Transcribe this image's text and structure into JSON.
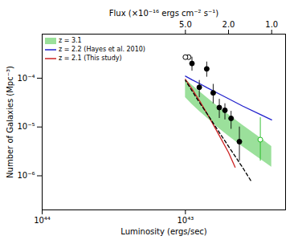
{
  "chart_data": {
    "type": "line",
    "log": true,
    "xlabel": "Luminosity (ergs/sec)",
    "ylabel": "Number of Galaxies (Mpc⁻³)",
    "x2label": "Flux (×10⁻¹⁶ ergs cm⁻² s⁻¹)",
    "xlim": [
      1e+44,
      2e+42
    ],
    "ylim": [
      2e-07,
      0.0008
    ],
    "xticks": [
      {
        "value": 1e+44,
        "label": "10⁴⁴"
      },
      {
        "value": 1e+43,
        "label": "10⁴³"
      }
    ],
    "x2ticks": [
      {
        "value": 1e+43,
        "label": "5.0"
      },
      {
        "value": 5e+42,
        "label": "2.0"
      },
      {
        "value": 2.5e+42,
        "label": "1.0"
      }
    ],
    "yticks": [
      {
        "value": 1e-06,
        "label": "10⁻⁶"
      },
      {
        "value": 1e-05,
        "label": "10⁻⁵"
      },
      {
        "value": 0.0001,
        "label": "10⁻⁴"
      }
    ],
    "grid": false,
    "legend": "upper left",
    "series": [
      {
        "name": "z = 3.1",
        "type": "band",
        "color": "#22bb22",
        "x": [
          2.5e+42,
          3e+42,
          4e+42,
          5e+42,
          6e+42,
          7e+42,
          8e+42,
          9e+42,
          1e+43
        ],
        "low": [
          1.5e-06,
          2.2e-06,
          4e-06,
          6.5e-06,
          1e-05,
          1.5e-05,
          2.1e-05,
          2.9e-05,
          4e-05
        ],
        "high": [
          4e-06,
          6e-06,
          1.1e-05,
          1.8e-05,
          2.7e-05,
          3.9e-05,
          5.4e-05,
          7.2e-05,
          9.5e-05
        ]
      },
      {
        "name": "z = 2.2 (Hayes et al. 2010)",
        "type": "line",
        "color": "#2222cc",
        "x": [
          2.5e+42,
          3e+42,
          4e+42,
          5e+42,
          6e+42,
          7e+42,
          8e+42,
          9e+42,
          1e+43
        ],
        "values": [
          1.4e-05,
          1.8e-05,
          2.7e-05,
          3.8e-05,
          5e-05,
          6.3e-05,
          7.8e-05,
          9.3e-05,
          0.00011
        ]
      },
      {
        "name": "z = 2.1 (This study)",
        "type": "line",
        "color": "#cc2222",
        "x": [
          4.5e+42,
          5e+42,
          6e+42,
          7e+42,
          8e+42,
          9e+42,
          1e+43
        ],
        "values": [
          1.5e-06,
          3e-06,
          8e-06,
          1.8e-05,
          3.5e-05,
          6e-05,
          9.5e-05
        ]
      },
      {
        "type": "line",
        "color": "black",
        "line_style": "dashed",
        "x": [
          3.5e+42,
          4e+42,
          5e+42,
          6e+42,
          7e+42,
          8e+42,
          9e+42,
          1e+43
        ],
        "values": [
          8e-07,
          1.5e-06,
          4e-06,
          9e-06,
          1.8e-05,
          3.2e-05,
          5.5e-05,
          9e-05
        ]
      },
      {
        "type": "scatter",
        "color": "black",
        "marker": "filled",
        "x": [
          4.2e+42,
          4.8e+42,
          5.3e+42,
          5.8e+42,
          6.4e+42,
          7.1e+42,
          8e+42,
          9e+42
        ],
        "values": [
          5e-06,
          1.5e-05,
          2.2e-05,
          2.5e-05,
          5e-05,
          0.000155,
          6.5e-05,
          0.0002
        ],
        "yerr_low": [
          3e-06,
          6e-06,
          8e-06,
          1e-05,
          2e-05,
          5e-05,
          2.5e-05,
          6e-05
        ],
        "yerr_high": [
          5e-06,
          6e-06,
          8e-06,
          1.2e-05,
          2.5e-05,
          6e-05,
          2.5e-05,
          7e-05
        ]
      },
      {
        "type": "scatter",
        "color": "black",
        "marker": "open",
        "x": [
          9.5e+42,
          1e+43
        ],
        "values": [
          0.00027,
          0.00027
        ],
        "xerr": [
          3e+41,
          3e+41
        ]
      },
      {
        "type": "scatter",
        "color": "#22bb22",
        "marker": "open",
        "x": [
          3e+42
        ],
        "values": [
          5.5e-06
        ],
        "yerr_low": [
          3.5e-06
        ],
        "yerr_high": [
          1e-05
        ]
      }
    ]
  }
}
